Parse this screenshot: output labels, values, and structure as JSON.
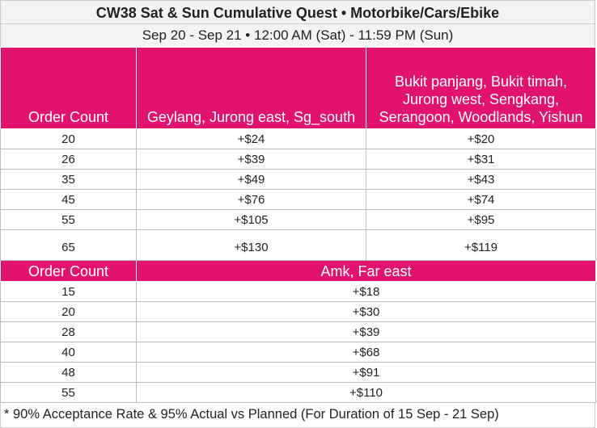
{
  "header": {
    "title": "CW38 Sat & Sun Cumulative Quest • Motorbike/Cars/Ebike",
    "subtitle": "Sep 20 - Sep 21 • 12:00 AM (Sat) - 11:59 PM (Sun)"
  },
  "table1": {
    "columns": [
      "Order Count",
      "Geylang, Jurong east, Sg_south",
      "Bukit panjang, Bukit timah, Jurong west, Sengkang, Serangoon, Woodlands, Yishun"
    ],
    "rows": [
      [
        20,
        "+$24",
        "+$20"
      ],
      [
        26,
        "+$39",
        "+$31"
      ],
      [
        35,
        "+$49",
        "+$43"
      ],
      [
        45,
        "+$76",
        "+$74"
      ],
      [
        55,
        "+$105",
        "+$95"
      ],
      [
        65,
        "+$130",
        "+$119"
      ]
    ]
  },
  "table2": {
    "columns": [
      "Order Count",
      "Amk, Far east"
    ],
    "rows": [
      [
        15,
        "+$18"
      ],
      [
        20,
        "+$30"
      ],
      [
        28,
        "+$39"
      ],
      [
        40,
        "+$68"
      ],
      [
        48,
        "+$91"
      ],
      [
        55,
        "+$110"
      ]
    ]
  },
  "footnote": "* 90% Acceptance Rate & 95% Actual vs Planned (For Duration of 15 Sep - 21 Sep)"
}
